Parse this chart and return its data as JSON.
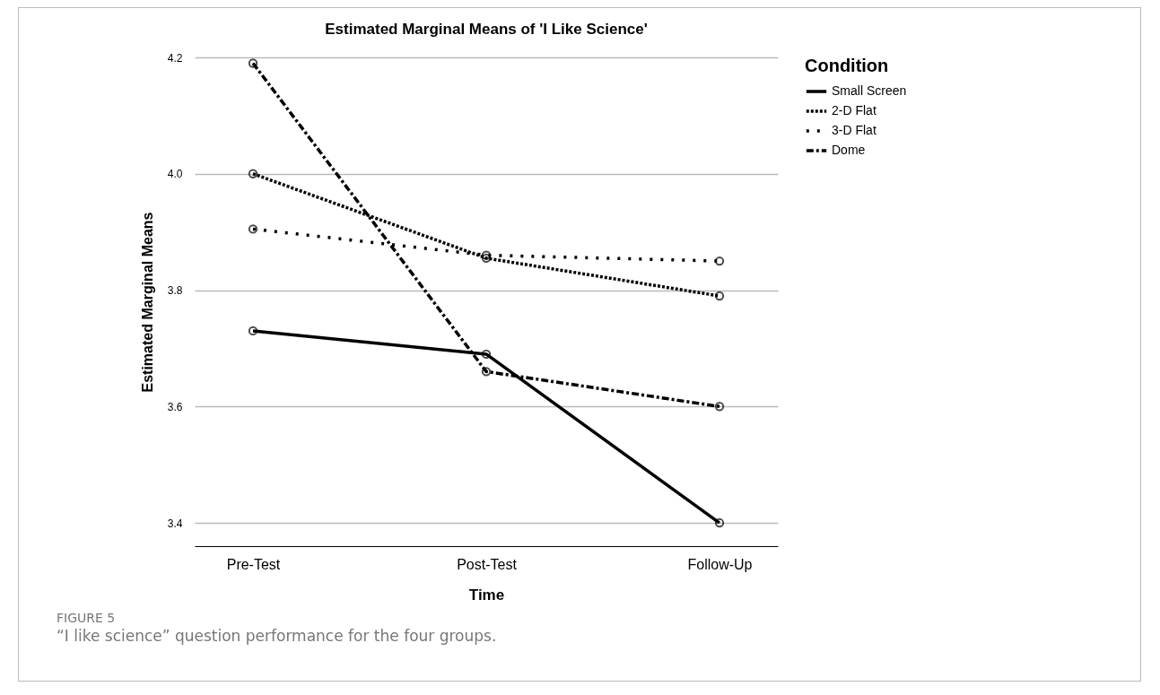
{
  "chart_data": {
    "type": "line",
    "title": "Estimated Marginal Means of 'I Like Science'",
    "xlabel": "Time",
    "ylabel": "Estimated Marginal Means",
    "legend_title": "Condition",
    "categories": [
      "Pre-Test",
      "Post-Test",
      "Follow-Up"
    ],
    "series": [
      {
        "name": "Small Screen",
        "color": "#000000",
        "line_style": "solid",
        "values": [
          3.73,
          3.69,
          3.4
        ]
      },
      {
        "name": "2-D Flat",
        "color": "#000000",
        "line_style": "dotted",
        "values": [
          4.0,
          3.855,
          3.79
        ]
      },
      {
        "name": "3-D Flat",
        "color": "#000000",
        "line_style": "dotted",
        "values": [
          3.905,
          3.86,
          3.85
        ]
      },
      {
        "name": "Dome",
        "color": "#000000",
        "line_style": "dashed",
        "values": [
          4.19,
          3.66,
          3.6
        ]
      }
    ],
    "ylim": [
      3.36,
      4.2
    ],
    "yticks": [
      3.4,
      3.6,
      3.8,
      {
        "value": 4,
        "label": "4.0"
      },
      4.2
    ],
    "grid": "y",
    "legend": "top right",
    "marker": "circle",
    "annotations": [
      "FIGURE 5",
      "“I like science” question performance for the four groups."
    ]
  }
}
